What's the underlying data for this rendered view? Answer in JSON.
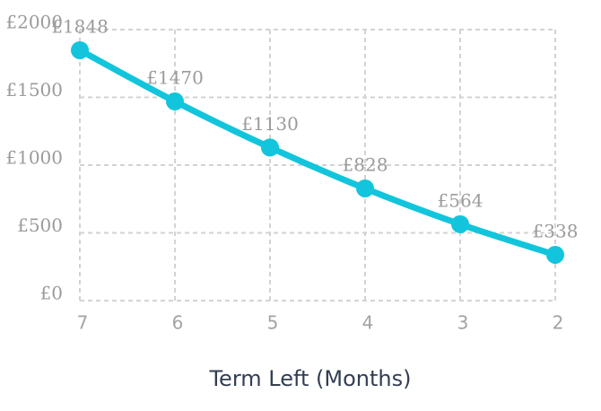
{
  "chart_data": {
    "type": "line",
    "title": "",
    "xlabel": "Term Left (Months)",
    "ylabel": "",
    "categories": [
      "7",
      "6",
      "5",
      "4",
      "3",
      "2"
    ],
    "values": [
      1848,
      1470,
      1130,
      828,
      564,
      338
    ],
    "point_labels": [
      "£1848",
      "£1470",
      "£1130",
      "£828",
      "£564",
      "£338"
    ],
    "ytick_values": [
      0,
      500,
      1000,
      1500,
      2000
    ],
    "ytick_labels": [
      "£0",
      "£500",
      "£1000",
      "£1500",
      "£2000"
    ],
    "ylim": [
      0,
      2000
    ],
    "grid": true,
    "legend": false
  },
  "colors": {
    "series_line": "#12c5dc",
    "marker": "#12c5dc",
    "grid_line": "#d3d3d3",
    "tick_label": "#9b9b9b",
    "xtick_label": "#a3a3a3",
    "axis_title": "#333e52"
  }
}
